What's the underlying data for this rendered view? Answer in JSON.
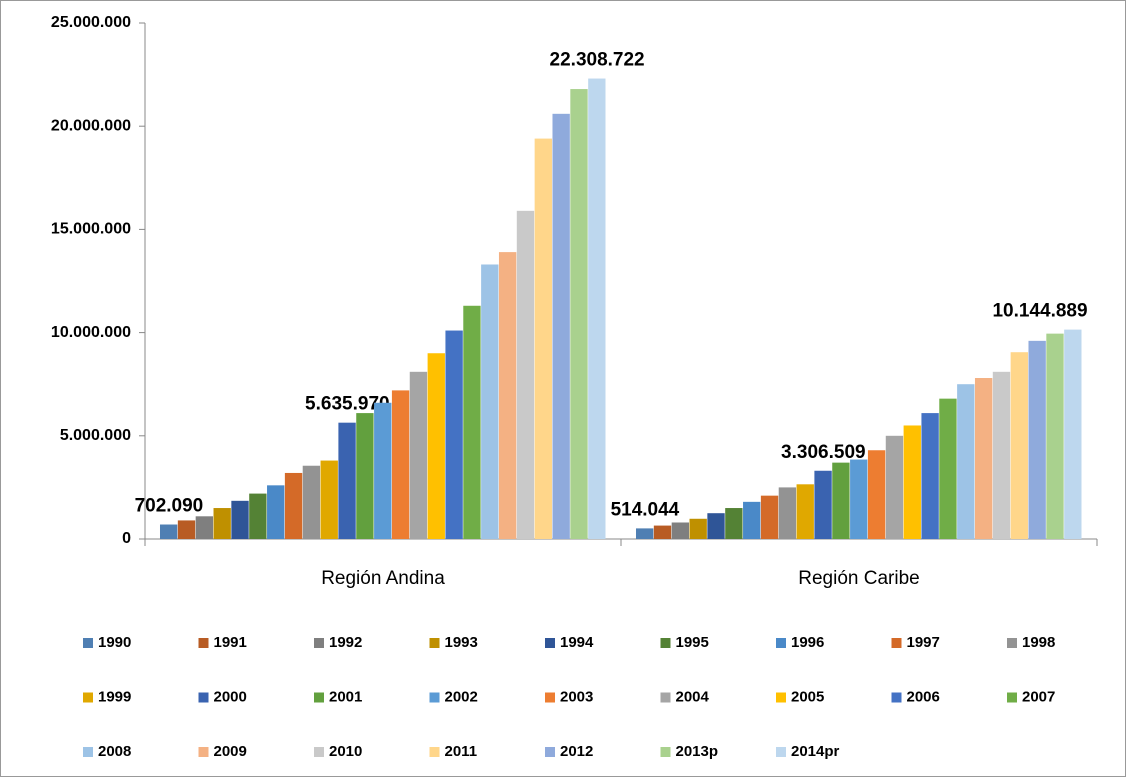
{
  "chart_data": {
    "type": "bar",
    "categories": [
      "Región Andina",
      "Región Caribe"
    ],
    "ylim": [
      0,
      25000000
    ],
    "yticks": [
      0,
      {
        "value": 5000000,
        "label": "5.000.000"
      },
      {
        "value": 10000000,
        "label": "10.000.000"
      },
      {
        "value": 15000000,
        "label": "15.000.000"
      },
      {
        "value": 20000000,
        "label": "20.000.000"
      },
      {
        "value": 25000000,
        "label": "25.000.000"
      }
    ],
    "series": [
      {
        "name": "1990",
        "color": "#4f7fb3",
        "values": [
          702090,
          514044
        ],
        "value_labels": [
          "702.090",
          "514.044"
        ]
      },
      {
        "name": "1991",
        "color": "#b85c24",
        "values": [
          900000,
          650000
        ]
      },
      {
        "name": "1992",
        "color": "#7f7f7f",
        "values": [
          1100000,
          800000
        ]
      },
      {
        "name": "1993",
        "color": "#bf9000",
        "values": [
          1500000,
          980000
        ]
      },
      {
        "name": "1994",
        "color": "#2f5597",
        "values": [
          1850000,
          1250000
        ]
      },
      {
        "name": "1995",
        "color": "#548235",
        "values": [
          2200000,
          1500000
        ]
      },
      {
        "name": "1996",
        "color": "#4a89c8",
        "values": [
          2600000,
          1800000
        ]
      },
      {
        "name": "1997",
        "color": "#d46a28",
        "values": [
          3200000,
          2100000
        ]
      },
      {
        "name": "1998",
        "color": "#939393",
        "values": [
          3550000,
          2500000
        ]
      },
      {
        "name": "1999",
        "color": "#e0a800",
        "values": [
          3800000,
          2650000
        ]
      },
      {
        "name": "2000",
        "color": "#3a63b0",
        "values": [
          5635970,
          3306509
        ],
        "value_labels": [
          "5.635.970",
          "3.306.509"
        ]
      },
      {
        "name": "2001",
        "color": "#62a03e",
        "values": [
          6100000,
          3700000
        ]
      },
      {
        "name": "2002",
        "color": "#5b9bd5",
        "values": [
          6600000,
          3850000
        ]
      },
      {
        "name": "2003",
        "color": "#ed7d31",
        "values": [
          7200000,
          4300000
        ]
      },
      {
        "name": "2004",
        "color": "#a5a5a5",
        "values": [
          8100000,
          5000000
        ]
      },
      {
        "name": "2005",
        "color": "#ffc000",
        "values": [
          9000000,
          5500000
        ]
      },
      {
        "name": "2006",
        "color": "#4472c4",
        "values": [
          10100000,
          6100000
        ]
      },
      {
        "name": "2007",
        "color": "#70ad47",
        "values": [
          11300000,
          6800000
        ]
      },
      {
        "name": "2008",
        "color": "#9dc3e6",
        "values": [
          13300000,
          7500000
        ]
      },
      {
        "name": "2009",
        "color": "#f4b183",
        "values": [
          13900000,
          7800000
        ]
      },
      {
        "name": "2010",
        "color": "#c9c9c9",
        "values": [
          15900000,
          8100000
        ]
      },
      {
        "name": "2011",
        "color": "#ffd68a",
        "values": [
          19400000,
          9050000
        ]
      },
      {
        "name": "2012",
        "color": "#8faadc",
        "values": [
          20600000,
          9600000
        ]
      },
      {
        "name": "2013p",
        "color": "#a9d18e",
        "values": [
          21800000,
          9950000
        ]
      },
      {
        "name": "2014pr",
        "color": "#bdd7ee",
        "values": [
          22308722,
          10144889
        ],
        "value_labels": [
          "22.308.722",
          "10.144.889"
        ]
      }
    ]
  }
}
